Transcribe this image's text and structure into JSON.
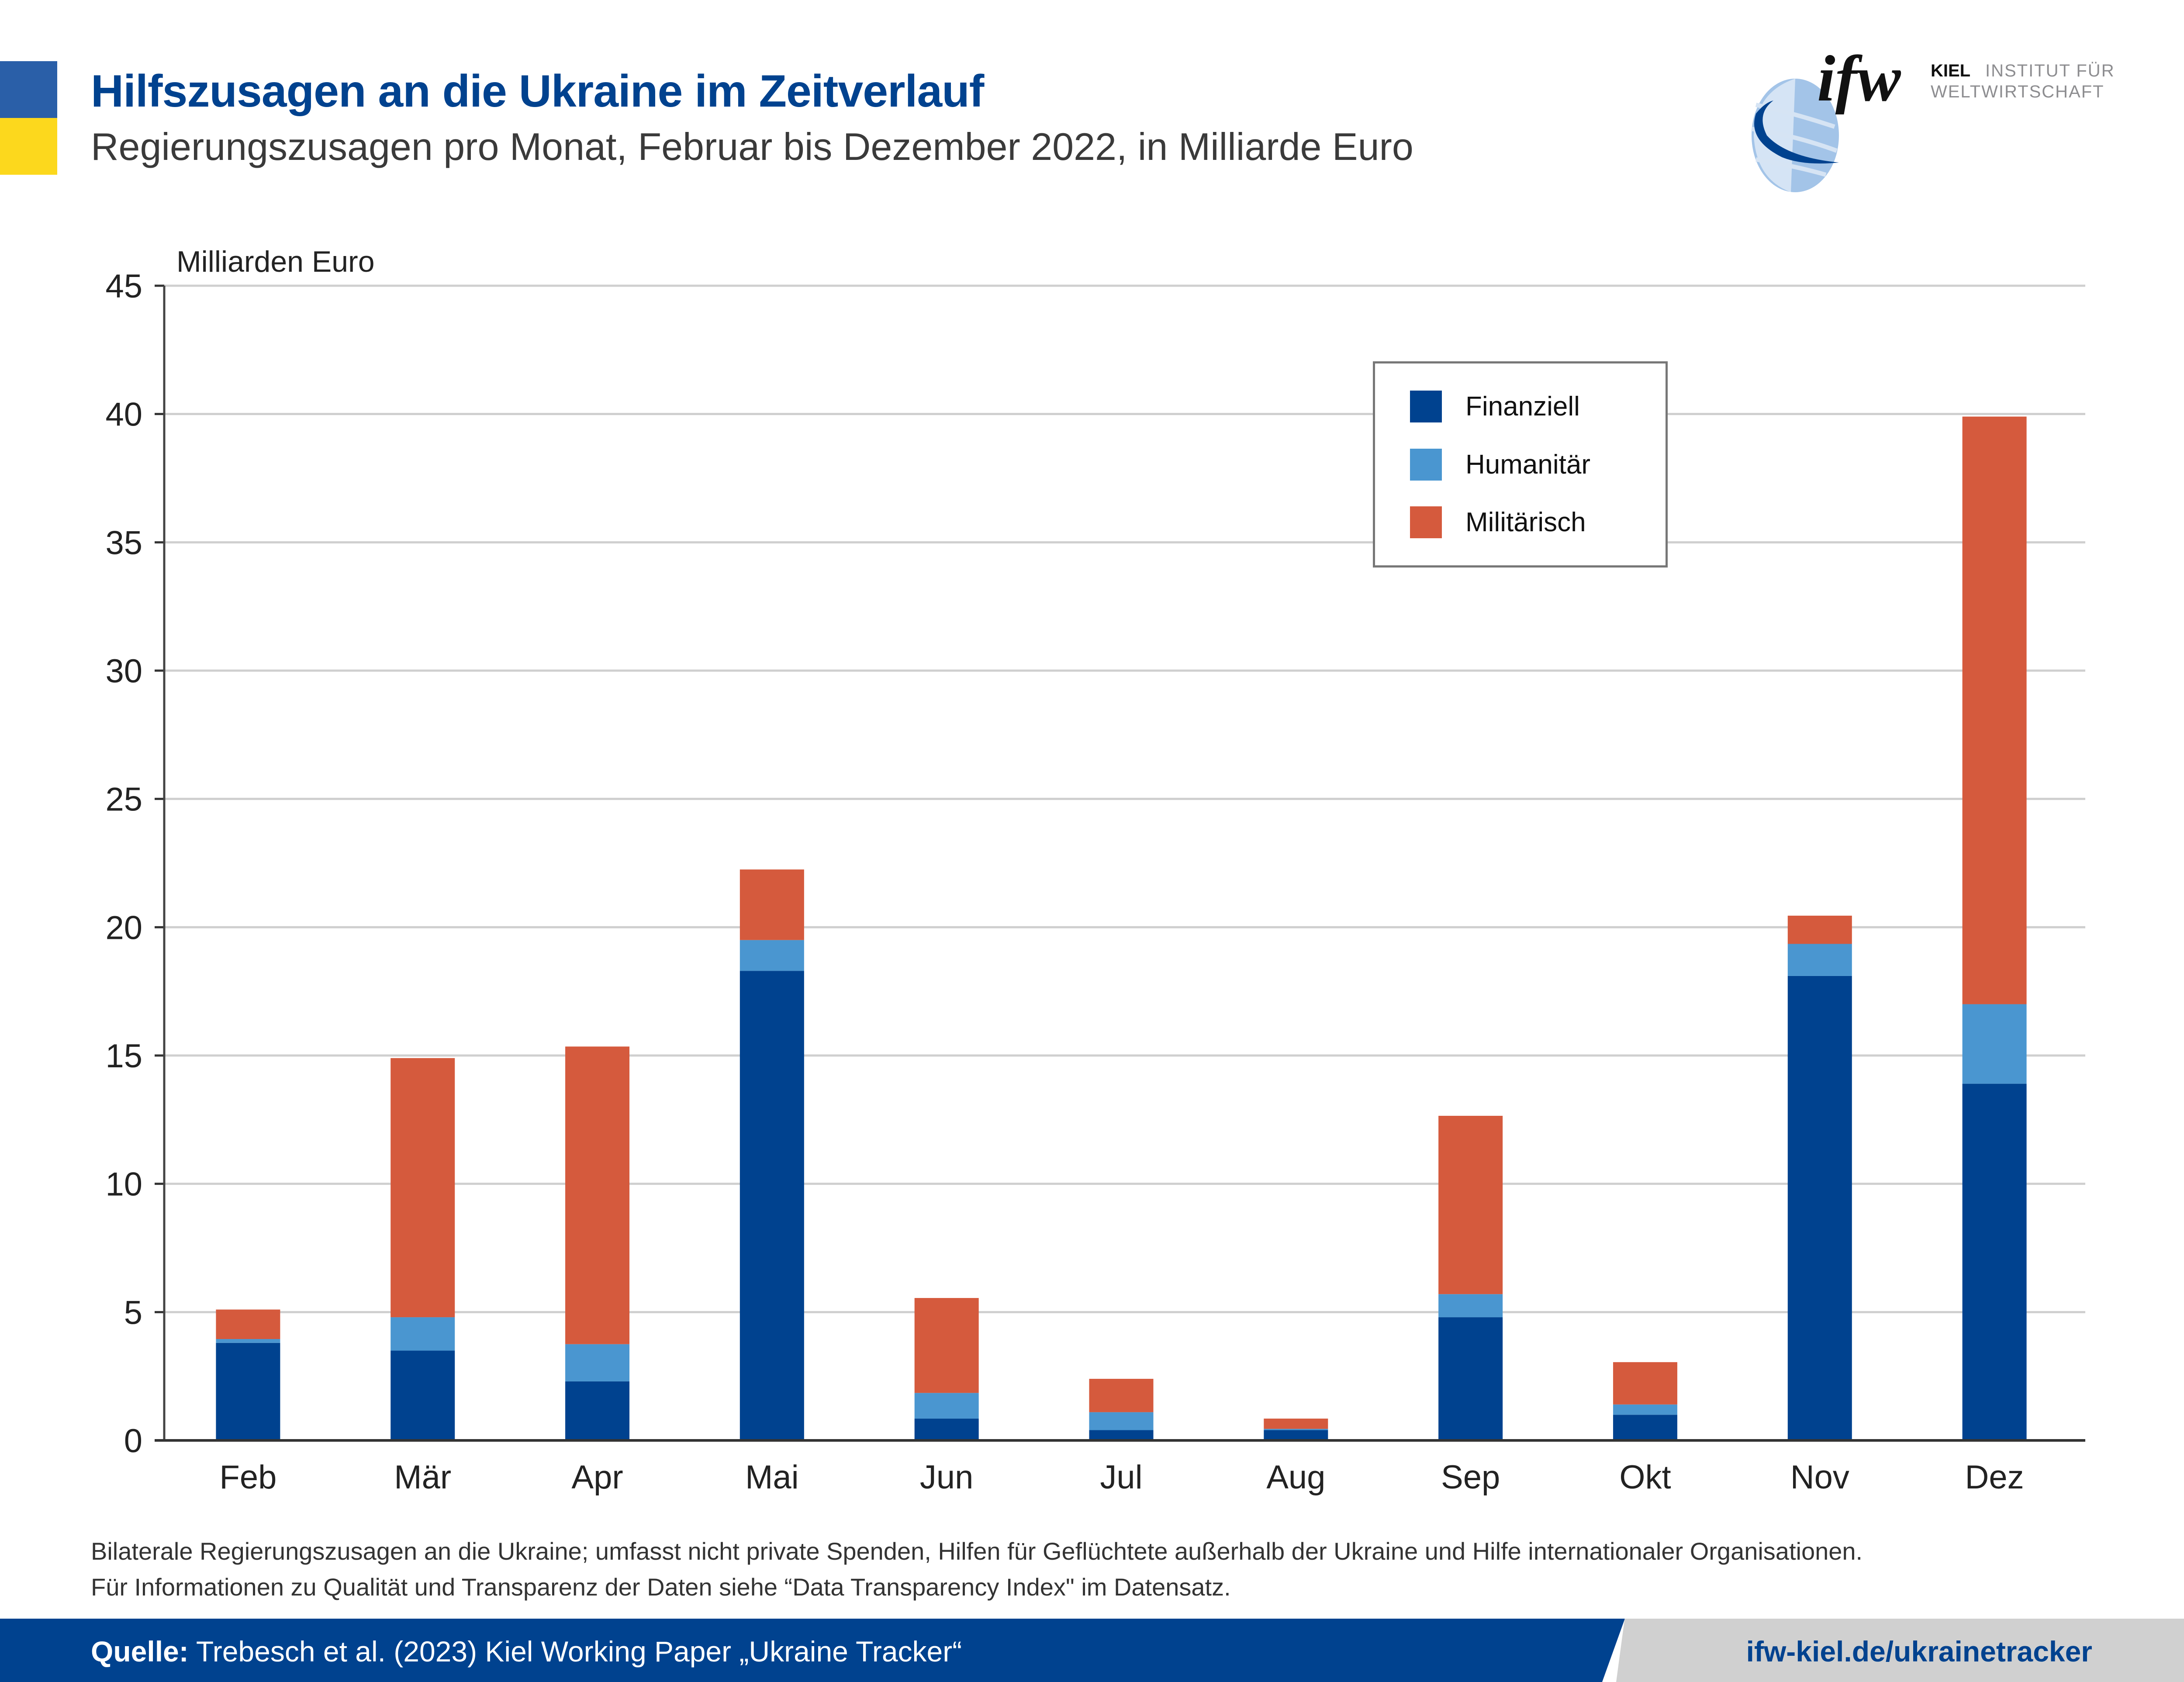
{
  "header": {
    "title": "Hilfszusagen an die Ukraine im Zeitverlauf",
    "subtitle": "Regierungszusagen pro Monat, Februar bis Dezember 2022, in Milliarde Euro",
    "flag_colors": [
      "#2a5fa8",
      "#fcd81d"
    ]
  },
  "logo": {
    "mark": "ifw",
    "kiel": "KIEL",
    "line1": "INSTITUT FÜR",
    "line2": "WELTWIRTSCHAFT",
    "icon": "globe-icon"
  },
  "chart_data": {
    "type": "bar",
    "stacked": true,
    "title": "Hilfszusagen an die Ukraine im Zeitverlauf",
    "ylabel": "Milliarden Euro",
    "xlabel": "",
    "ylim": [
      0,
      45
    ],
    "yticks": [
      0,
      5,
      10,
      15,
      20,
      25,
      30,
      35,
      40,
      45
    ],
    "grid": true,
    "legend_position": "top-right",
    "categories": [
      "Feb",
      "Mär",
      "Apr",
      "Mai",
      "Jun",
      "Jul",
      "Aug",
      "Sep",
      "Okt",
      "Nov",
      "Dez"
    ],
    "series": [
      {
        "name": "Finanziell",
        "color": "#00428f",
        "values": [
          3.8,
          3.5,
          2.3,
          18.3,
          0.85,
          0.4,
          0.4,
          4.8,
          1.0,
          18.1,
          13.9
        ]
      },
      {
        "name": "Humanitär",
        "color": "#4a96d0",
        "values": [
          0.15,
          1.3,
          1.45,
          1.2,
          1.0,
          0.7,
          0.05,
          0.9,
          0.4,
          1.25,
          3.1
        ]
      },
      {
        "name": "Militärisch",
        "color": "#d55a3d",
        "values": [
          1.15,
          10.1,
          11.6,
          2.75,
          3.7,
          1.3,
          0.4,
          6.95,
          1.65,
          1.1,
          22.9
        ]
      }
    ]
  },
  "footnote": {
    "line1": "Bilaterale Regierungszusagen an die Ukraine; umfasst nicht private Spenden, Hilfen für Geflüchtete außerhalb der Ukraine und Hilfe internationaler Organisationen.",
    "line2": "Für Informationen zu Qualität und Transparenz der Daten siehe “Data Transparency Index\" im Datensatz."
  },
  "source": {
    "label": "Quelle:",
    "text": " Trebesch et al. (2023) Kiel Working Paper „Ukraine Tracker“",
    "url": "ifw-kiel.de/ukrainetracker"
  }
}
